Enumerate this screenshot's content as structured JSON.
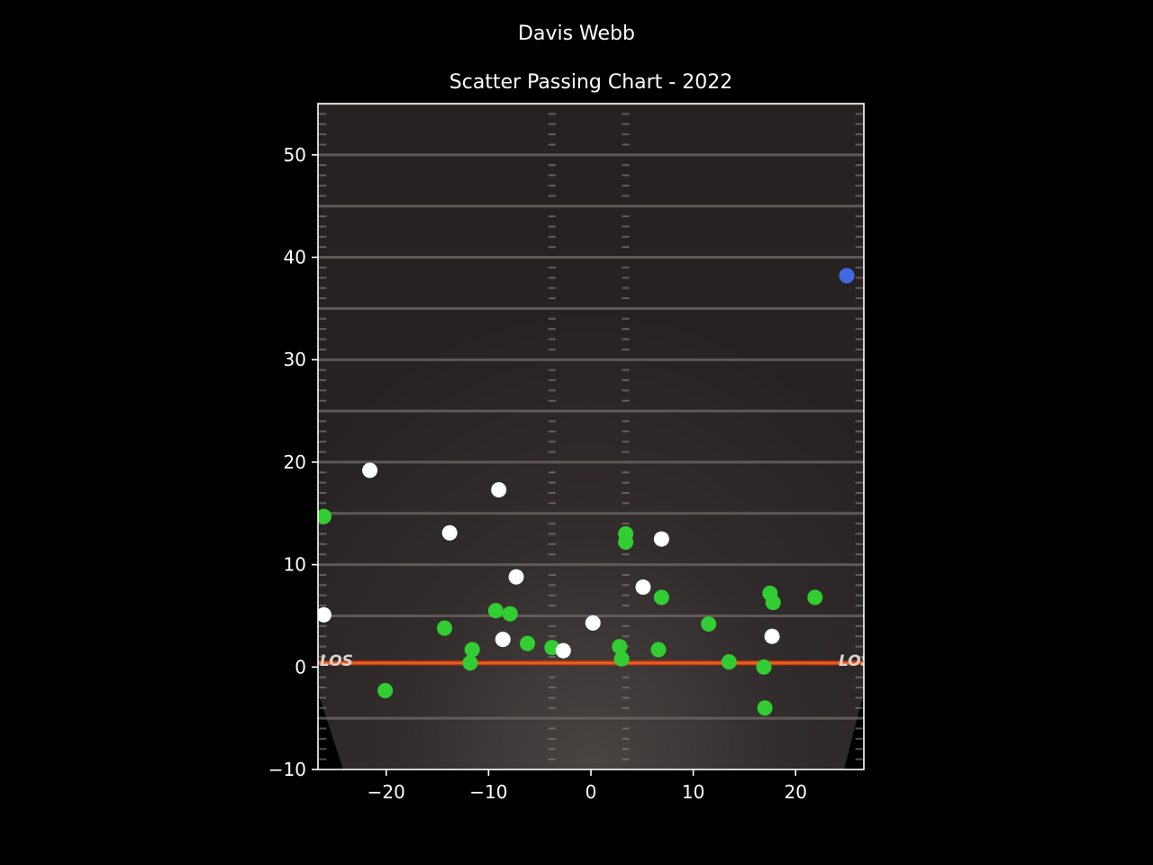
{
  "chart_data": {
    "type": "scatter",
    "title": "Davis Webb",
    "subtitle": "Scatter Passing Chart - 2022",
    "xlabel": "",
    "ylabel": "",
    "xlim": [
      -26.67,
      26.67
    ],
    "ylim": [
      -10,
      55
    ],
    "x_ticks": [
      -20,
      -10,
      0,
      10,
      20
    ],
    "y_ticks": [
      -10,
      0,
      10,
      20,
      30,
      40,
      50
    ],
    "x_tick_labels": [
      "−20",
      "−10",
      "0",
      "10",
      "20"
    ],
    "y_tick_labels": [
      "−10",
      "0",
      "10",
      "20",
      "30",
      "40",
      "50"
    ],
    "los_label": "LOS",
    "grid": false,
    "legend": "none",
    "background": "football field",
    "colors": {
      "complete": "#32cd32",
      "incomplete": "#ffffff",
      "touchdown": "#4169e1",
      "los_line": "#e0400a",
      "axes": "#ffffff",
      "figure_bg": "#000000",
      "field_bg": "#2b2726",
      "yard_line": "#6f6a66"
    },
    "series": [
      {
        "color": "green",
        "points": [
          [
            -26.1,
            14.7
          ],
          [
            -20.1,
            -2.3
          ],
          [
            -14.3,
            3.8
          ],
          [
            -11.6,
            1.7
          ],
          [
            -11.8,
            0.4
          ],
          [
            -9.3,
            5.5
          ],
          [
            -7.9,
            5.2
          ],
          [
            -6.2,
            2.3
          ],
          [
            -3.8,
            1.9
          ],
          [
            2.8,
            2.0
          ],
          [
            3.0,
            0.8
          ],
          [
            3.4,
            13.0
          ],
          [
            3.4,
            12.2
          ],
          [
            6.6,
            1.7
          ],
          [
            6.9,
            6.8
          ],
          [
            11.5,
            4.2
          ],
          [
            13.5,
            0.5
          ],
          [
            16.9,
            0.0
          ],
          [
            17.0,
            -4.0
          ],
          [
            17.5,
            7.2
          ],
          [
            17.8,
            6.3
          ],
          [
            21.9,
            6.8
          ]
        ]
      },
      {
        "color": "white",
        "points": [
          [
            -26.1,
            5.1
          ],
          [
            -21.6,
            19.2
          ],
          [
            -13.8,
            13.1
          ],
          [
            -9.0,
            17.3
          ],
          [
            -7.3,
            8.8
          ],
          [
            -8.6,
            2.7
          ],
          [
            -2.7,
            1.6
          ],
          [
            0.2,
            4.3
          ],
          [
            5.1,
            7.8
          ],
          [
            6.9,
            12.5
          ],
          [
            17.7,
            3.0
          ]
        ]
      },
      {
        "color": "blue",
        "points": [
          [
            25.0,
            38.2
          ]
        ]
      }
    ]
  }
}
